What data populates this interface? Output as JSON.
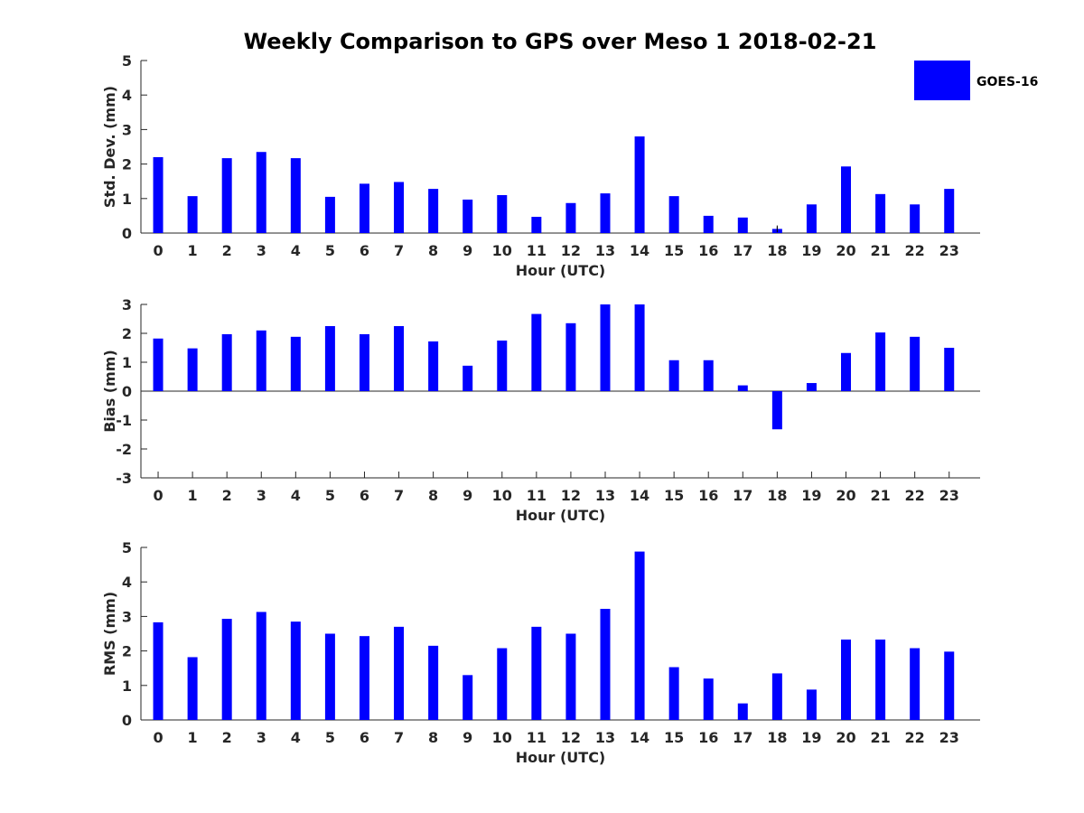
{
  "title": "Weekly Comparison to GPS over Meso 1 2018-02-21",
  "legend": {
    "label": "GOES-16",
    "placement": "top-right",
    "color": "#0000ff"
  },
  "colors": {
    "bar": "#0000ff",
    "axis": "#262626",
    "text": "#262626"
  },
  "chart_data": [
    {
      "type": "bar",
      "categories": [
        "0",
        "1",
        "2",
        "3",
        "4",
        "5",
        "6",
        "7",
        "8",
        "9",
        "10",
        "11",
        "12",
        "13",
        "14",
        "15",
        "16",
        "17",
        "18",
        "19",
        "20",
        "21",
        "22",
        "23"
      ],
      "series": [
        {
          "name": "GOES-16",
          "values": [
            2.2,
            1.07,
            2.17,
            2.35,
            2.17,
            1.05,
            1.43,
            1.48,
            1.28,
            0.97,
            1.1,
            0.47,
            0.87,
            1.15,
            2.8,
            1.07,
            0.5,
            0.45,
            0.12,
            0.83,
            1.93,
            1.13,
            0.83,
            1.28
          ]
        }
      ],
      "error_bars": {
        "18": 0.1
      },
      "xlabel": "Hour (UTC)",
      "ylabel": "Std. Dev. (mm)",
      "ylim": [
        0,
        5
      ],
      "yticks": [
        0,
        1,
        2,
        3,
        4,
        5
      ],
      "grid": false
    },
    {
      "type": "bar",
      "categories": [
        "0",
        "1",
        "2",
        "3",
        "4",
        "5",
        "6",
        "7",
        "8",
        "9",
        "10",
        "11",
        "12",
        "13",
        "14",
        "15",
        "16",
        "17",
        "18",
        "19",
        "20",
        "21",
        "22",
        "23"
      ],
      "series": [
        {
          "name": "GOES-16",
          "values": [
            1.82,
            1.48,
            1.97,
            2.1,
            1.88,
            2.25,
            1.97,
            2.25,
            1.72,
            0.88,
            1.75,
            2.67,
            2.35,
            3.0,
            3.0,
            1.07,
            1.07,
            0.2,
            -1.32,
            0.28,
            1.32,
            2.03,
            1.88,
            1.5
          ]
        }
      ],
      "xlabel": "Hour (UTC)",
      "ylabel": "Bias (mm)",
      "ylim": [
        -3,
        3
      ],
      "yticks": [
        -3,
        -2,
        -1,
        0,
        1,
        2,
        3
      ],
      "grid": false
    },
    {
      "type": "bar",
      "categories": [
        "0",
        "1",
        "2",
        "3",
        "4",
        "5",
        "6",
        "7",
        "8",
        "9",
        "10",
        "11",
        "12",
        "13",
        "14",
        "15",
        "16",
        "17",
        "18",
        "19",
        "20",
        "21",
        "22",
        "23"
      ],
      "series": [
        {
          "name": "GOES-16",
          "values": [
            2.83,
            1.82,
            2.93,
            3.13,
            2.85,
            2.5,
            2.43,
            2.7,
            2.15,
            1.3,
            2.08,
            2.7,
            2.5,
            3.22,
            4.88,
            1.53,
            1.2,
            0.48,
            1.35,
            0.88,
            2.33,
            2.33,
            2.08,
            1.98
          ]
        }
      ],
      "xlabel": "Hour (UTC)",
      "ylabel": "RMS (mm)",
      "ylim": [
        0,
        5
      ],
      "yticks": [
        0,
        1,
        2,
        3,
        4,
        5
      ],
      "grid": false
    }
  ]
}
